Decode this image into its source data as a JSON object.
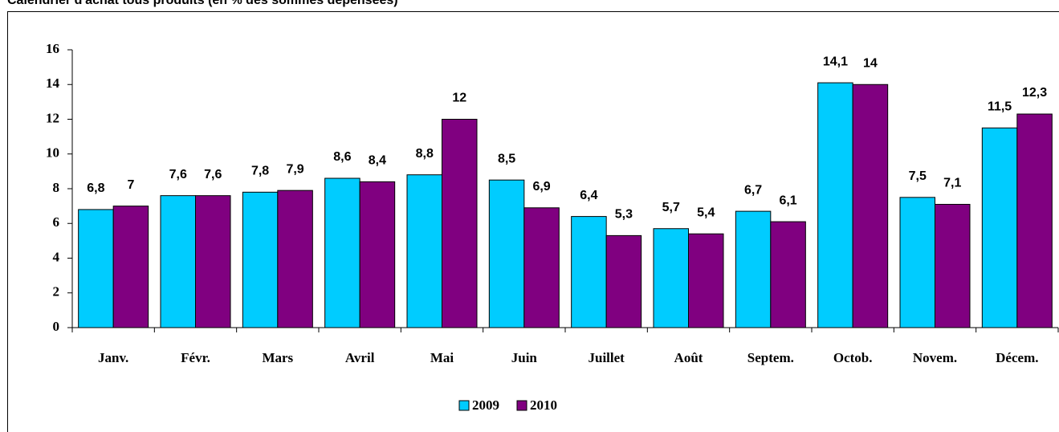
{
  "chart_data": {
    "type": "bar",
    "title": "Calendrier d'achat tous produits (en % des sommes dépensées)",
    "categories": [
      "Janv.",
      "Févr.",
      "Mars",
      "Avril",
      "Mai",
      "Juin",
      "Juillet",
      "Août",
      "Septem.",
      "Octob.",
      "Novem.",
      "Décem."
    ],
    "series": [
      {
        "name": "2009",
        "color": "#00ccff",
        "values": [
          6.8,
          7.6,
          7.8,
          8.6,
          8.8,
          8.5,
          6.4,
          5.7,
          6.7,
          14.1,
          7.5,
          11.5
        ],
        "value_labels": [
          "6,8",
          "7,6",
          "7,8",
          "8,6",
          "8,8",
          "8,5",
          "6,4",
          "5,7",
          "6,7",
          "14,1",
          "7,5",
          "11,5"
        ]
      },
      {
        "name": "2010",
        "color": "#800080",
        "values": [
          7,
          7.6,
          7.9,
          8.4,
          12,
          6.9,
          5.3,
          5.4,
          6.1,
          14,
          7.1,
          12.3
        ],
        "value_labels": [
          "7",
          "7,6",
          "7,9",
          "8,4",
          "12",
          "6,9",
          "5,3",
          "5,4",
          "6,1",
          "14",
          "7,1",
          "12,3"
        ]
      }
    ],
    "ylim": [
      0,
      16
    ],
    "yticks": [
      0,
      2,
      4,
      6,
      8,
      10,
      12,
      14,
      16
    ],
    "legend": "bottom"
  }
}
